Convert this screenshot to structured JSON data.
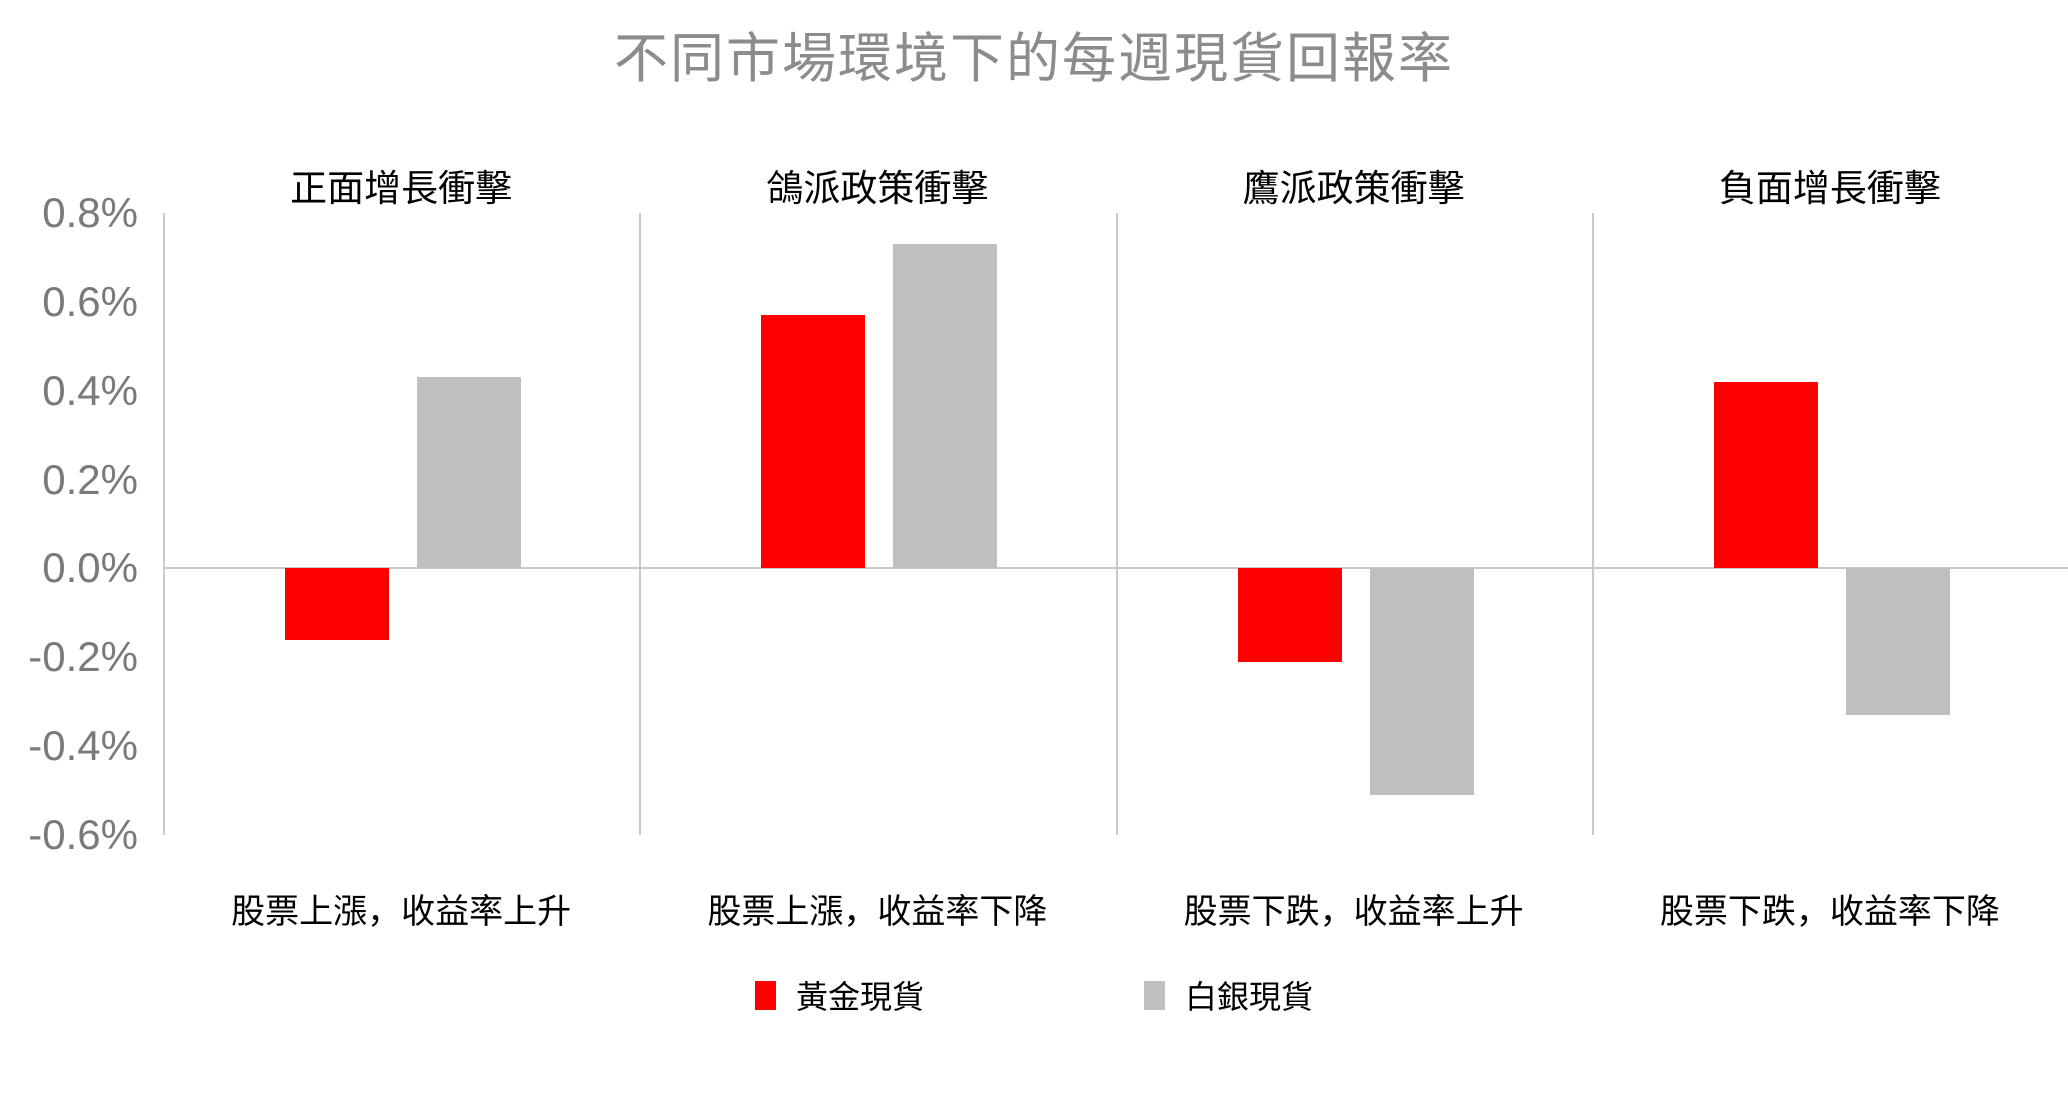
{
  "title": "不同市場環境下的每週現貨回報率",
  "colors": {
    "gold": "#ff0000",
    "silver": "#bfbfbf",
    "axis_line": "#c9c9c9",
    "title_text": "#8c8c8c",
    "tick_text": "#7a7a7a"
  },
  "legend": [
    {
      "label": "黃金現貨",
      "color": "#ff0000"
    },
    {
      "label": "白銀現貨",
      "color": "#bfbfbf"
    }
  ],
  "chart_data": {
    "type": "bar",
    "title": "不同市場環境下的每週現貨回報率",
    "value_unit": "%",
    "ylim": [
      -0.6,
      0.8
    ],
    "ytick_labels": [
      "0.8%",
      "0.6%",
      "0.4%",
      "0.2%",
      "0.0%",
      "-0.2%",
      "-0.4%",
      "-0.6%"
    ],
    "grid": false,
    "legend_position": "bottom",
    "categories": [
      "股票上漲，收益率上升",
      "股票上漲，收益率下降",
      "股票下跌，收益率上升",
      "股票下跌，收益率下降"
    ],
    "panel_titles": [
      "正面增長衝擊",
      "鴿派政策衝擊",
      "鷹派政策衝擊",
      "負面增長衝擊"
    ],
    "series": [
      {
        "name": "黃金現貨",
        "values": [
          -0.16,
          0.57,
          -0.21,
          0.42
        ]
      },
      {
        "name": "白銀現貨",
        "values": [
          0.43,
          0.73,
          -0.51,
          -0.33
        ]
      }
    ]
  }
}
